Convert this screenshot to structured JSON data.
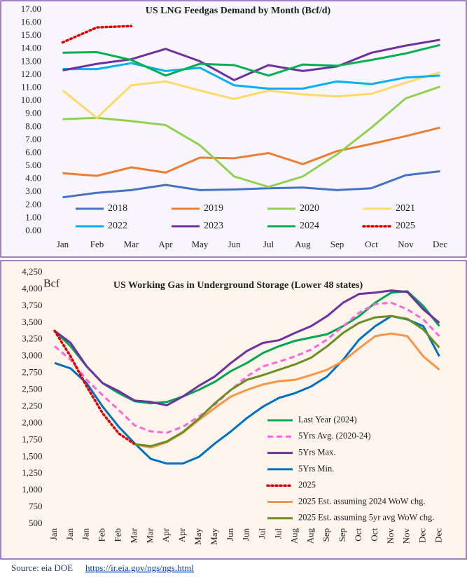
{
  "chart_data": [
    {
      "type": "line",
      "title": "US LNG Feedgas Demand by Month (Bcf/d)",
      "categories": [
        "Jan",
        "Feb",
        "Mar",
        "Apr",
        "May",
        "Jun",
        "Jul",
        "Aug",
        "Sep",
        "Oct",
        "Nov",
        "Dec"
      ],
      "ylim": [
        0,
        17
      ],
      "yticks": [
        {
          "value": 0,
          "label": "0.00"
        },
        {
          "value": 1,
          "label": "1.00"
        },
        {
          "value": 2,
          "label": "2.00"
        },
        {
          "value": 3,
          "label": "3.00"
        },
        {
          "value": 4,
          "label": "4.00"
        },
        {
          "value": 5,
          "label": "5.00"
        },
        {
          "value": 6,
          "label": "6.00"
        },
        {
          "value": 7,
          "label": "7.00"
        },
        {
          "value": 8,
          "label": "8.00"
        },
        {
          "value": 9,
          "label": "9.00"
        },
        {
          "value": 10,
          "label": "10.00"
        },
        {
          "value": 11,
          "label": "11.00"
        },
        {
          "value": 12,
          "label": "12.00"
        },
        {
          "value": 13,
          "label": "13.00"
        },
        {
          "value": 14,
          "label": "14.00"
        },
        {
          "value": 15,
          "label": "15.00"
        },
        {
          "value": 16,
          "label": "16.00"
        },
        {
          "value": 17,
          "label": "17.00"
        }
      ],
      "grid": false,
      "legend": "bottom",
      "series": [
        {
          "name": "2018",
          "color": "#4472c4",
          "values": [
            2.6,
            2.95,
            3.15,
            3.55,
            3.15,
            3.2,
            3.3,
            3.35,
            3.15,
            3.3,
            4.3,
            4.6
          ]
        },
        {
          "name": "2019",
          "color": "#ed7d31",
          "values": [
            4.45,
            4.25,
            4.9,
            4.5,
            5.65,
            5.6,
            6.0,
            5.15,
            6.15,
            6.7,
            7.3,
            7.95
          ]
        },
        {
          "name": "2020",
          "color": "#92d050",
          "values": [
            8.6,
            8.7,
            8.45,
            8.15,
            6.6,
            4.2,
            3.4,
            4.2,
            5.9,
            7.95,
            10.2,
            11.1
          ]
        },
        {
          "name": "2021",
          "color": "#ffd966",
          "values": [
            10.8,
            8.7,
            11.2,
            11.5,
            10.8,
            10.15,
            10.8,
            10.5,
            10.35,
            10.55,
            11.4,
            12.2
          ]
        },
        {
          "name": "2022",
          "color": "#00b0f0",
          "values": [
            12.45,
            12.45,
            12.9,
            12.3,
            12.55,
            11.2,
            10.95,
            10.95,
            11.5,
            11.3,
            11.8,
            11.95
          ]
        },
        {
          "name": "2023",
          "color": "#7030a0",
          "values": [
            12.35,
            12.85,
            13.2,
            14.0,
            13.05,
            11.6,
            12.75,
            12.3,
            12.65,
            13.7,
            14.25,
            14.7
          ]
        },
        {
          "name": "2024",
          "color": "#00b050",
          "values": [
            13.7,
            13.75,
            13.15,
            11.95,
            12.85,
            12.75,
            11.95,
            12.8,
            12.7,
            13.15,
            13.65,
            14.3
          ]
        },
        {
          "name": "2025",
          "color": "#e00000",
          "dash": "dotted",
          "values": [
            14.5,
            15.65,
            15.75,
            null,
            null,
            null,
            null,
            null,
            null,
            null,
            null,
            null
          ]
        }
      ]
    },
    {
      "type": "line",
      "title": "US Working Gas in Underground Storage (Lower 48 states)",
      "y_label": "Bcf",
      "categories": [
        "Jan",
        "Jan",
        "Jan",
        "Feb",
        "Feb",
        "Mar",
        "Mar",
        "Apr",
        "Apr",
        "May",
        "May",
        "Jun",
        "Jun",
        "Jul",
        "Jul",
        "Aug",
        "Aug",
        "Sep",
        "Sep",
        "Oct",
        "Oct",
        "Nov",
        "Nov",
        "Dec",
        "Dec"
      ],
      "ylim": [
        500,
        4250
      ],
      "yticks": [
        500,
        750,
        {
          "value": 1000,
          "label": "1,000"
        },
        {
          "value": 1250,
          "label": "1,250"
        },
        {
          "value": 1500,
          "label": "1,500"
        },
        {
          "value": 1750,
          "label": "1,750"
        },
        {
          "value": 2000,
          "label": "2,000"
        },
        {
          "value": 2250,
          "label": "2,250"
        },
        {
          "value": 2500,
          "label": "2,500"
        },
        {
          "value": 2750,
          "label": "2,750"
        },
        {
          "value": 3000,
          "label": "3,000"
        },
        {
          "value": 3250,
          "label": "3,250"
        },
        {
          "value": 3500,
          "label": "3,500"
        },
        {
          "value": 3750,
          "label": "3,750"
        },
        {
          "value": 4000,
          "label": "4,000"
        },
        {
          "value": 4250,
          "label": "4,250"
        }
      ],
      "grid": false,
      "legend": "lower right",
      "series": [
        {
          "name": "Last Year (2024)",
          "color": "#00a651",
          "values": [
            3380,
            3150,
            2850,
            2600,
            2450,
            2330,
            2300,
            2320,
            2400,
            2500,
            2620,
            2780,
            2900,
            3050,
            3150,
            3230,
            3280,
            3330,
            3450,
            3600,
            3800,
            3950,
            3970,
            3750,
            3450
          ]
        },
        {
          "name": "5Yrs Avg. (2020-24)",
          "color": "#ff66dd",
          "dash": "dashed",
          "values": [
            3150,
            2950,
            2650,
            2420,
            2200,
            1970,
            1880,
            1860,
            1950,
            2100,
            2280,
            2500,
            2700,
            2850,
            2920,
            3000,
            3100,
            3250,
            3450,
            3650,
            3780,
            3800,
            3700,
            3550,
            3300
          ]
        },
        {
          "name": "5Yrs Max.",
          "color": "#7030a0",
          "values": [
            3380,
            3200,
            2850,
            2600,
            2480,
            2340,
            2320,
            2270,
            2400,
            2560,
            2700,
            2900,
            3080,
            3200,
            3240,
            3350,
            3450,
            3600,
            3800,
            3930,
            3950,
            3980,
            3960,
            3700,
            3500
          ]
        },
        {
          "name": "5Yrs Min.",
          "color": "#0070c0",
          "values": [
            2900,
            2820,
            2600,
            2250,
            1950,
            1700,
            1470,
            1400,
            1400,
            1500,
            1700,
            1880,
            2080,
            2250,
            2380,
            2450,
            2550,
            2700,
            2950,
            3250,
            3450,
            3600,
            3550,
            3450,
            3000
          ]
        },
        {
          "name": "2025",
          "color": "#e00000",
          "dash": "dotted",
          "values": [
            3380,
            3000,
            2550,
            2150,
            1850,
            1690,
            null,
            null,
            null,
            null,
            null,
            null,
            null,
            null,
            null,
            null,
            null,
            null,
            null,
            null,
            null,
            null,
            null,
            null,
            null
          ]
        },
        {
          "name": "2025 Est. assuming 2024 WoW chg.",
          "color": "#f79646",
          "values": [
            null,
            null,
            null,
            null,
            null,
            1690,
            1640,
            1720,
            1860,
            2050,
            2230,
            2400,
            2500,
            2580,
            2630,
            2650,
            2720,
            2800,
            2930,
            3120,
            3300,
            3340,
            3300,
            3000,
            2800
          ]
        },
        {
          "name": "2025 Est. assuming 5yr avg WoW chg.",
          "color": "#6b8e23",
          "values": [
            null,
            null,
            null,
            null,
            null,
            1690,
            1660,
            1730,
            1870,
            2070,
            2300,
            2500,
            2650,
            2720,
            2800,
            2880,
            2980,
            3150,
            3350,
            3500,
            3580,
            3600,
            3560,
            3400,
            3130
          ]
        }
      ]
    }
  ],
  "source": {
    "label": "Source: eia DOE",
    "url": "https://ir.eia.gov/ngs/ngs.html"
  }
}
